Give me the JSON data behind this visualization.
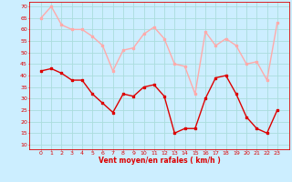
{
  "hours": [
    0,
    1,
    2,
    3,
    4,
    5,
    6,
    7,
    8,
    9,
    10,
    11,
    12,
    13,
    14,
    15,
    16,
    17,
    18,
    19,
    20,
    21,
    22,
    23
  ],
  "wind_avg": [
    42,
    43,
    41,
    38,
    38,
    32,
    28,
    24,
    32,
    31,
    35,
    36,
    31,
    15,
    17,
    17,
    30,
    39,
    40,
    32,
    22,
    17,
    15,
    25
  ],
  "wind_gust": [
    65,
    70,
    62,
    60,
    60,
    57,
    53,
    42,
    51,
    52,
    58,
    61,
    56,
    45,
    44,
    32,
    59,
    53,
    56,
    53,
    45,
    46,
    38,
    63
  ],
  "wind_avg_color": "#dd0000",
  "wind_gust_color": "#ffaaaa",
  "bg_color": "#cceeff",
  "grid_color": "#aadddd",
  "xlabel": "Vent moyen/en rafales ( km/h )",
  "xlabel_color": "#dd0000",
  "tick_color": "#dd0000",
  "ylim": [
    8,
    72
  ],
  "yticks": [
    10,
    15,
    20,
    25,
    30,
    35,
    40,
    45,
    50,
    55,
    60,
    65,
    70
  ],
  "marker_size": 2,
  "line_width": 1.0
}
